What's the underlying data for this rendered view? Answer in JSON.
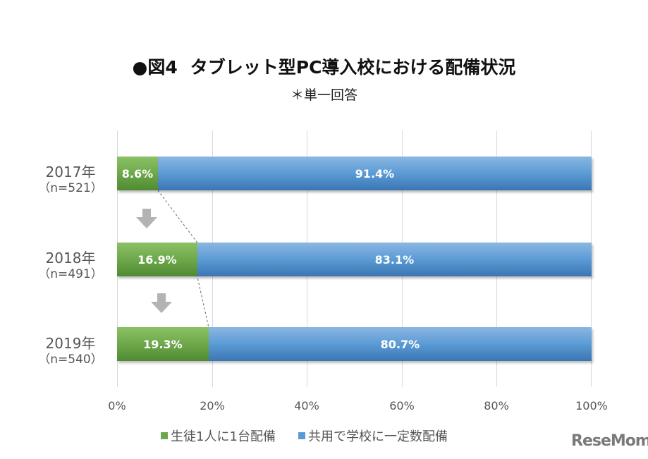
{
  "header": {
    "title_prefix": "●図4",
    "title_main": "タブレット型PC導入校における配備状況",
    "subtitle": "＊単一回答"
  },
  "colors": {
    "green": "#6ea84a",
    "blue": "#5b9bd5",
    "grid": "#d9d9d9",
    "arrow": "#b3b3b3"
  },
  "rows": [
    {
      "year": "2017年",
      "n": "（n=521）",
      "green_label": "8.6%",
      "blue_label": "91.4%",
      "green": 8.6,
      "blue": 91.4
    },
    {
      "year": "2018年",
      "n": "（n=491）",
      "green_label": "16.9%",
      "blue_label": "83.1%",
      "green": 16.9,
      "blue": 83.1
    },
    {
      "year": "2019年",
      "n": "（n=540）",
      "green_label": "19.3%",
      "blue_label": "80.7%",
      "green": 19.3,
      "blue": 80.7
    }
  ],
  "x_ticks": [
    "0%",
    "20%",
    "40%",
    "60%",
    "80%",
    "100%"
  ],
  "legend": [
    {
      "label": "生徒1人に1台配備",
      "color": "#6ea84a"
    },
    {
      "label": "共用で学校に一定数配備",
      "color": "#5b9bd5"
    }
  ],
  "watermark": "ReseMom",
  "chart_data": {
    "type": "bar",
    "orientation": "horizontal",
    "stacked": true,
    "percent_stacked": true,
    "title": "●図4 タブレット型PC導入校における配備状況",
    "subtitle": "＊単一回答",
    "categories": [
      "2017年（n=521）",
      "2018年（n=491）",
      "2019年（n=540）"
    ],
    "series": [
      {
        "name": "生徒1人に1台配備",
        "values": [
          8.6,
          16.9,
          19.3
        ],
        "color": "#6ea84a"
      },
      {
        "name": "共用で学校に一定数配備",
        "values": [
          91.4,
          83.1,
          80.7
        ],
        "color": "#5b9bd5"
      }
    ],
    "xlabel": "",
    "ylabel": "",
    "xlim": [
      0,
      100
    ],
    "x_ticks": [
      "0%",
      "20%",
      "40%",
      "60%",
      "80%",
      "100%"
    ],
    "grid": true,
    "legend_position": "bottom",
    "data_labels": true,
    "annotations": [
      "down arrows between years",
      "dashed trend line connecting green segment ends"
    ]
  }
}
